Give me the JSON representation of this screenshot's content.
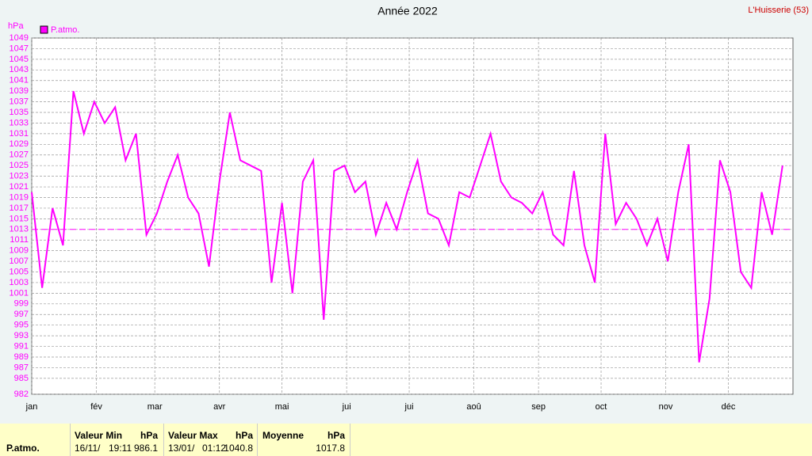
{
  "chart_data": {
    "type": "line",
    "title": "Année 2022",
    "station": "L'Huisserie (53)",
    "y_unit": "hPa",
    "x": [
      0,
      5,
      10,
      15,
      20,
      25,
      30,
      35,
      40,
      45,
      50,
      55,
      60,
      65,
      70,
      75,
      80,
      85,
      90,
      95,
      100,
      105,
      110,
      115,
      120,
      125,
      130,
      135,
      140,
      145,
      150,
      155,
      160,
      165,
      170,
      175,
      180,
      185,
      190,
      195,
      200,
      205,
      210,
      215,
      220,
      225,
      230,
      235,
      240,
      245,
      250,
      255,
      260,
      265,
      270,
      275,
      280,
      285,
      290,
      295,
      300,
      305,
      310,
      315,
      320,
      325,
      330,
      335,
      340,
      345,
      350,
      355,
      360
    ],
    "series": [
      {
        "name": "P.atmo.",
        "color": "#ff00ff",
        "values": [
          1020,
          1002,
          1017,
          1010,
          1039,
          1031,
          1037,
          1033,
          1036,
          1026,
          1031,
          1012,
          1016,
          1022,
          1027,
          1019,
          1016,
          1006,
          1022,
          1035,
          1026,
          1025,
          1024,
          1003,
          1018,
          1001,
          1022,
          1026,
          996,
          1024,
          1025,
          1020,
          1022,
          1012,
          1018,
          1013,
          1020,
          1026,
          1016,
          1015,
          1010,
          1020,
          1019,
          1025,
          1031,
          1022,
          1019,
          1018,
          1016,
          1020,
          1012,
          1010,
          1024,
          1010,
          1003,
          1031,
          1014,
          1018,
          1015,
          1010,
          1015,
          1007,
          1020,
          1029,
          988,
          1000,
          1026,
          1020,
          1005,
          1002,
          1020,
          1012,
          1025
        ]
      }
    ],
    "reference_line": 1013,
    "xlim": [
      0,
      365
    ],
    "xticks": [
      {
        "value": 0,
        "label": "jan"
      },
      {
        "value": 31,
        "label": "fév"
      },
      {
        "value": 59,
        "label": "mar"
      },
      {
        "value": 90,
        "label": "avr"
      },
      {
        "value": 120,
        "label": "mai"
      },
      {
        "value": 151,
        "label": "jui"
      },
      {
        "value": 181,
        "label": "jui"
      },
      {
        "value": 212,
        "label": "aoû"
      },
      {
        "value": 243,
        "label": "sep"
      },
      {
        "value": 273,
        "label": "oct"
      },
      {
        "value": 304,
        "label": "nov"
      },
      {
        "value": 334,
        "label": "déc"
      }
    ],
    "ylim": [
      982,
      1049
    ],
    "yticks": [
      982,
      985,
      987,
      989,
      991,
      993,
      995,
      997,
      999,
      1001,
      1003,
      1005,
      1007,
      1009,
      1011,
      1013,
      1015,
      1017,
      1019,
      1021,
      1023,
      1025,
      1027,
      1029,
      1031,
      1033,
      1035,
      1037,
      1039,
      1041,
      1043,
      1045,
      1047,
      1049
    ],
    "grid": true
  },
  "footer": {
    "series_label": "P.atmo.",
    "columns": [
      {
        "header": "Valeur Min",
        "unit": "hPa",
        "date": "16/11/",
        "time": "19:11",
        "value": "986.1"
      },
      {
        "header": "Valeur Max",
        "unit": "hPa",
        "date": "13/01/",
        "time": "01:12",
        "value": "1040.8"
      },
      {
        "header": "Moyenne",
        "unit": "hPa",
        "value": "1017.8"
      }
    ]
  }
}
